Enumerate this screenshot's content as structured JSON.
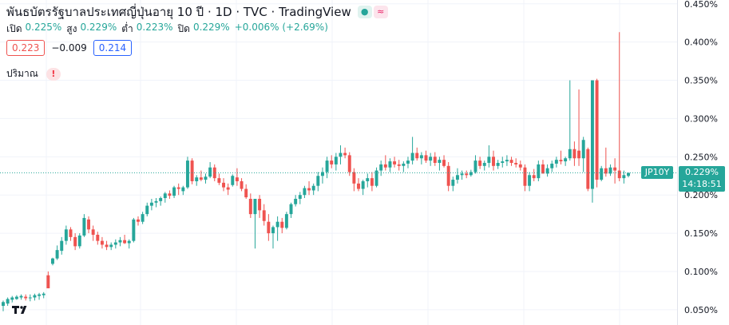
{
  "header": {
    "title": "พันธบัตรรัฐบาลประเทศญี่ปุ่นอายุ 10 ปี · 1D · TVC · TradingView",
    "ohlc": [
      {
        "label": "เปิด",
        "value": "0.225%"
      },
      {
        "label": "สูง",
        "value": "0.229%"
      },
      {
        "label": "ต่ำ",
        "value": "0.223%"
      },
      {
        "label": "ปิด",
        "value": "0.229%"
      },
      {
        "label": "",
        "value": "+0.006% (+2.69%)"
      }
    ]
  },
  "indicator": {
    "left_value": "0.223",
    "diff": "−0.009",
    "right_value": "0.214"
  },
  "volume": {
    "label": "ปริมาณ",
    "warning": "!"
  },
  "last_price": {
    "tag": "JP10Y",
    "value": "0.229%",
    "countdown": "14:18:51"
  },
  "colors": {
    "up": "#26a69a",
    "down": "#ef5350",
    "grid": "#f0f3fa"
  },
  "chart_data": {
    "type": "candlestick",
    "y_ticks": [
      "0.450%",
      "0.400%",
      "0.350%",
      "0.300%",
      "0.250%",
      "0.200%",
      "0.150%",
      "0.100%",
      "0.050%"
    ],
    "ylim": [
      0.03,
      0.455
    ],
    "last_close": 0.229,
    "grid": true,
    "series": [
      {
        "name": "JP10Y",
        "ohlc": [
          [
            0.055,
            0.062,
            0.048,
            0.06
          ],
          [
            0.058,
            0.066,
            0.055,
            0.064
          ],
          [
            0.063,
            0.068,
            0.058,
            0.066
          ],
          [
            0.064,
            0.069,
            0.06,
            0.067
          ],
          [
            0.066,
            0.07,
            0.061,
            0.068
          ],
          [
            0.067,
            0.07,
            0.062,
            0.065
          ],
          [
            0.065,
            0.07,
            0.061,
            0.066
          ],
          [
            0.066,
            0.071,
            0.062,
            0.069
          ],
          [
            0.068,
            0.072,
            0.063,
            0.07
          ],
          [
            0.069,
            0.073,
            0.065,
            0.071
          ],
          [
            0.095,
            0.1,
            0.078,
            0.078
          ],
          [
            0.11,
            0.118,
            0.108,
            0.117
          ],
          [
            0.117,
            0.134,
            0.115,
            0.128
          ],
          [
            0.127,
            0.145,
            0.122,
            0.14
          ],
          [
            0.14,
            0.16,
            0.135,
            0.155
          ],
          [
            0.155,
            0.158,
            0.14,
            0.145
          ],
          [
            0.145,
            0.15,
            0.128,
            0.133
          ],
          [
            0.133,
            0.15,
            0.13,
            0.147
          ],
          [
            0.147,
            0.175,
            0.145,
            0.17
          ],
          [
            0.168,
            0.172,
            0.15,
            0.155
          ],
          [
            0.155,
            0.16,
            0.14,
            0.148
          ],
          [
            0.148,
            0.152,
            0.135,
            0.14
          ],
          [
            0.14,
            0.145,
            0.13,
            0.135
          ],
          [
            0.135,
            0.14,
            0.128,
            0.132
          ],
          [
            0.132,
            0.138,
            0.128,
            0.135
          ],
          [
            0.135,
            0.142,
            0.13,
            0.138
          ],
          [
            0.138,
            0.145,
            0.133,
            0.141
          ],
          [
            0.141,
            0.148,
            0.136,
            0.137
          ],
          [
            0.137,
            0.142,
            0.13,
            0.14
          ],
          [
            0.14,
            0.17,
            0.138,
            0.168
          ],
          [
            0.168,
            0.172,
            0.16,
            0.165
          ],
          [
            0.165,
            0.178,
            0.162,
            0.175
          ],
          [
            0.175,
            0.19,
            0.172,
            0.186
          ],
          [
            0.186,
            0.195,
            0.18,
            0.19
          ],
          [
            0.19,
            0.196,
            0.184,
            0.192
          ],
          [
            0.192,
            0.198,
            0.186,
            0.196
          ],
          [
            0.196,
            0.204,
            0.19,
            0.202
          ],
          [
            0.202,
            0.206,
            0.195,
            0.199
          ],
          [
            0.199,
            0.212,
            0.196,
            0.21
          ],
          [
            0.21,
            0.215,
            0.2,
            0.208
          ],
          [
            0.205,
            0.212,
            0.2,
            0.21
          ],
          [
            0.21,
            0.25,
            0.208,
            0.245
          ],
          [
            0.245,
            0.248,
            0.214,
            0.218
          ],
          [
            0.218,
            0.226,
            0.212,
            0.223
          ],
          [
            0.223,
            0.232,
            0.218,
            0.22
          ],
          [
            0.22,
            0.228,
            0.215,
            0.224
          ],
          [
            0.224,
            0.243,
            0.222,
            0.236
          ],
          [
            0.236,
            0.24,
            0.218,
            0.222
          ],
          [
            0.222,
            0.228,
            0.213,
            0.216
          ],
          [
            0.216,
            0.222,
            0.205,
            0.21
          ],
          [
            0.21,
            0.215,
            0.2,
            0.207
          ],
          [
            0.213,
            0.227,
            0.211,
            0.225
          ],
          [
            0.223,
            0.235,
            0.212,
            0.218
          ],
          [
            0.218,
            0.222,
            0.205,
            0.208
          ],
          [
            0.208,
            0.214,
            0.195,
            0.197
          ],
          [
            0.195,
            0.202,
            0.17,
            0.175
          ],
          [
            0.175,
            0.195,
            0.13,
            0.195
          ],
          [
            0.195,
            0.2,
            0.17,
            0.18
          ],
          [
            0.18,
            0.188,
            0.16,
            0.166
          ],
          [
            0.165,
            0.175,
            0.14,
            0.15
          ],
          [
            0.15,
            0.16,
            0.13,
            0.158
          ],
          [
            0.158,
            0.172,
            0.14,
            0.165
          ],
          [
            0.165,
            0.17,
            0.15,
            0.157
          ],
          [
            0.157,
            0.178,
            0.155,
            0.175
          ],
          [
            0.175,
            0.19,
            0.17,
            0.188
          ],
          [
            0.188,
            0.2,
            0.185,
            0.195
          ],
          [
            0.195,
            0.204,
            0.188,
            0.2
          ],
          [
            0.2,
            0.212,
            0.196,
            0.209
          ],
          [
            0.209,
            0.218,
            0.2,
            0.206
          ],
          [
            0.206,
            0.215,
            0.2,
            0.212
          ],
          [
            0.212,
            0.23,
            0.205,
            0.225
          ],
          [
            0.225,
            0.236,
            0.215,
            0.23
          ],
          [
            0.23,
            0.25,
            0.222,
            0.245
          ],
          [
            0.245,
            0.252,
            0.235,
            0.24
          ],
          [
            0.24,
            0.255,
            0.232,
            0.25
          ],
          [
            0.25,
            0.265,
            0.24,
            0.255
          ],
          [
            0.255,
            0.262,
            0.248,
            0.252
          ],
          [
            0.252,
            0.256,
            0.225,
            0.23
          ],
          [
            0.23,
            0.235,
            0.205,
            0.215
          ],
          [
            0.215,
            0.222,
            0.205,
            0.208
          ],
          [
            0.208,
            0.22,
            0.2,
            0.218
          ],
          [
            0.218,
            0.228,
            0.21,
            0.222
          ],
          [
            0.222,
            0.23,
            0.205,
            0.212
          ],
          [
            0.212,
            0.236,
            0.21,
            0.232
          ],
          [
            0.232,
            0.245,
            0.225,
            0.24
          ],
          [
            0.24,
            0.252,
            0.232,
            0.236
          ],
          [
            0.236,
            0.248,
            0.23,
            0.244
          ],
          [
            0.244,
            0.25,
            0.236,
            0.24
          ],
          [
            0.24,
            0.246,
            0.232,
            0.238
          ],
          [
            0.238,
            0.244,
            0.23,
            0.241
          ],
          [
            0.241,
            0.25,
            0.235,
            0.245
          ],
          [
            0.245,
            0.276,
            0.24,
            0.255
          ],
          [
            0.255,
            0.262,
            0.245,
            0.248
          ],
          [
            0.248,
            0.256,
            0.24,
            0.252
          ],
          [
            0.252,
            0.258,
            0.242,
            0.245
          ],
          [
            0.245,
            0.255,
            0.238,
            0.25
          ],
          [
            0.25,
            0.256,
            0.238,
            0.242
          ],
          [
            0.242,
            0.25,
            0.232,
            0.246
          ],
          [
            0.246,
            0.252,
            0.236,
            0.238
          ],
          [
            0.238,
            0.243,
            0.205,
            0.212
          ],
          [
            0.212,
            0.224,
            0.205,
            0.22
          ],
          [
            0.22,
            0.235,
            0.215,
            0.226
          ],
          [
            0.226,
            0.232,
            0.22,
            0.228
          ],
          [
            0.228,
            0.232,
            0.222,
            0.226
          ],
          [
            0.226,
            0.233,
            0.224,
            0.23
          ],
          [
            0.23,
            0.252,
            0.228,
            0.245
          ],
          [
            0.245,
            0.25,
            0.234,
            0.238
          ],
          [
            0.238,
            0.245,
            0.232,
            0.242
          ],
          [
            0.242,
            0.265,
            0.236,
            0.25
          ],
          [
            0.25,
            0.258,
            0.232,
            0.238
          ],
          [
            0.238,
            0.246,
            0.234,
            0.242
          ],
          [
            0.242,
            0.25,
            0.236,
            0.244
          ],
          [
            0.244,
            0.252,
            0.238,
            0.246
          ],
          [
            0.246,
            0.25,
            0.238,
            0.242
          ],
          [
            0.242,
            0.248,
            0.236,
            0.24
          ],
          [
            0.24,
            0.245,
            0.232,
            0.236
          ],
          [
            0.236,
            0.24,
            0.205,
            0.212
          ],
          [
            0.212,
            0.23,
            0.205,
            0.226
          ],
          [
            0.226,
            0.234,
            0.218,
            0.222
          ],
          [
            0.222,
            0.245,
            0.218,
            0.24
          ],
          [
            0.24,
            0.246,
            0.232,
            0.228
          ],
          [
            0.228,
            0.24,
            0.224,
            0.235
          ],
          [
            0.235,
            0.245,
            0.23,
            0.241
          ],
          [
            0.241,
            0.25,
            0.236,
            0.246
          ],
          [
            0.246,
            0.258,
            0.24,
            0.244
          ],
          [
            0.244,
            0.25,
            0.238,
            0.248
          ],
          [
            0.248,
            0.35,
            0.245,
            0.26
          ],
          [
            0.26,
            0.27,
            0.238,
            0.248
          ],
          [
            0.258,
            0.338,
            0.238,
            0.248
          ],
          [
            0.248,
            0.276,
            0.23,
            0.272
          ],
          [
            0.26,
            0.262,
            0.205,
            0.208
          ],
          [
            0.208,
            0.35,
            0.19,
            0.35
          ],
          [
            0.35,
            0.352,
            0.21,
            0.22
          ],
          [
            0.22,
            0.238,
            0.218,
            0.235
          ],
          [
            0.235,
            0.262,
            0.224,
            0.228
          ],
          [
            0.228,
            0.24,
            0.225,
            0.236
          ],
          [
            0.236,
            0.248,
            0.215,
            0.232
          ],
          [
            0.232,
            0.413,
            0.218,
            0.222
          ],
          [
            0.222,
            0.232,
            0.215,
            0.226
          ],
          [
            0.225,
            0.229,
            0.223,
            0.229
          ]
        ]
      }
    ]
  }
}
